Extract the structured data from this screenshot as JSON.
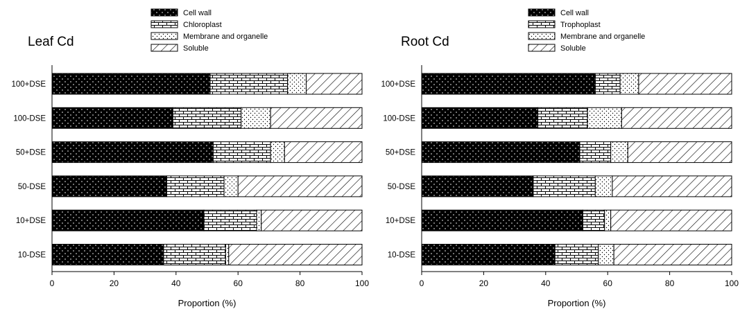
{
  "chart_data": [
    {
      "type": "bar",
      "orientation": "horizontal",
      "stacked": true,
      "title": "Leaf Cd",
      "xlabel": "Proportion (%)",
      "ylabel": "",
      "xlim": [
        0,
        100
      ],
      "xticks": [
        "0",
        "20",
        "40",
        "60",
        "80",
        "100"
      ],
      "categories": [
        "100+DSE",
        "100-DSE",
        "50+DSE",
        "50-DSE",
        "10+DSE",
        "10-DSE"
      ],
      "legend_position": "top",
      "series": [
        {
          "name": "Cell wall",
          "pattern": "dots-on-black",
          "values": [
            51,
            39,
            52,
            37,
            49,
            36
          ]
        },
        {
          "name": "Chloroplast",
          "pattern": "brick",
          "values": [
            25,
            22,
            18.5,
            18.5,
            17,
            20
          ]
        },
        {
          "name": "Membrane and organelle",
          "pattern": "dots",
          "values": [
            6,
            9.5,
            4.5,
            4.5,
            1.5,
            1
          ]
        },
        {
          "name": "Soluble",
          "pattern": "diagonal",
          "values": [
            18,
            29.5,
            25,
            40,
            32.5,
            43
          ]
        }
      ]
    },
    {
      "type": "bar",
      "orientation": "horizontal",
      "stacked": true,
      "title": "Root Cd",
      "xlabel": "Proportion (%)",
      "ylabel": "",
      "xlim": [
        0,
        100
      ],
      "xticks": [
        "0",
        "20",
        "40",
        "60",
        "80",
        "100"
      ],
      "categories": [
        "100+DSE",
        "100-DSE",
        "50+DSE",
        "50-DSE",
        "10+DSE",
        "10-DSE"
      ],
      "legend_position": "top",
      "series": [
        {
          "name": "Cell wall",
          "pattern": "dots-on-black",
          "values": [
            56,
            37.5,
            51,
            36,
            52,
            43
          ]
        },
        {
          "name": "Trophoplast",
          "pattern": "brick",
          "values": [
            8,
            16,
            10,
            20,
            7,
            14
          ]
        },
        {
          "name": "Membrane and organelle",
          "pattern": "dots",
          "values": [
            6,
            11,
            5.5,
            5.5,
            2,
            5
          ]
        },
        {
          "name": "Soluble",
          "pattern": "diagonal",
          "values": [
            30,
            35.5,
            33.5,
            38.5,
            39,
            38
          ]
        }
      ]
    }
  ]
}
